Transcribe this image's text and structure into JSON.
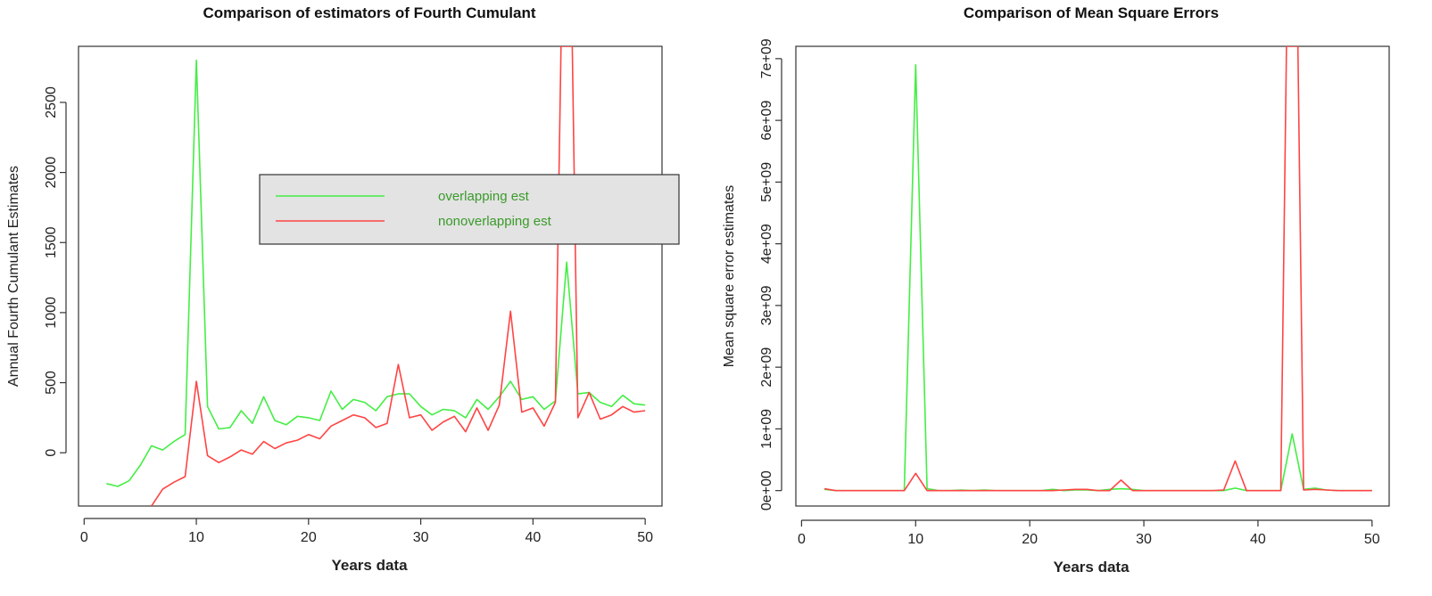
{
  "chart_data": [
    {
      "type": "line",
      "title": "Comparison of estimators of Fourth Cumulant",
      "xlabel": "Years data",
      "ylabel": "Annual Fourth Cumulant Estimates",
      "xlim": [
        -0.5,
        51.5
      ],
      "ylim": [
        -380,
        2900
      ],
      "xticks": [
        0,
        10,
        20,
        30,
        40,
        50
      ],
      "yticks": [
        0,
        500,
        1000,
        1500,
        2000,
        2500
      ],
      "ytick_labels": [
        "0",
        "500",
        "1000",
        "1500",
        "2000",
        "2500"
      ],
      "grid": false,
      "legend": {
        "placement": "center-right",
        "entries": [
          {
            "label": "overlapping est",
            "color": "#44ee44"
          },
          {
            "label": "nonoverlapping est",
            "color": "#ff4444"
          }
        ]
      },
      "series": [
        {
          "name": "overlapping est",
          "color": "#44ee44",
          "x": [
            2,
            3,
            4,
            5,
            6,
            7,
            8,
            9,
            10,
            11,
            12,
            13,
            14,
            15,
            16,
            17,
            18,
            19,
            20,
            21,
            22,
            23,
            24,
            25,
            26,
            27,
            28,
            29,
            30,
            31,
            32,
            33,
            34,
            35,
            36,
            37,
            38,
            39,
            40,
            41,
            42,
            43,
            44,
            45,
            46,
            47,
            48,
            49,
            50
          ],
          "y": [
            -220,
            -240,
            -200,
            -90,
            50,
            20,
            80,
            130,
            2800,
            330,
            170,
            180,
            300,
            210,
            400,
            230,
            200,
            260,
            250,
            230,
            440,
            310,
            380,
            360,
            300,
            400,
            420,
            420,
            330,
            270,
            310,
            300,
            250,
            380,
            310,
            400,
            510,
            380,
            400,
            310,
            370,
            1360,
            420,
            430,
            360,
            330,
            410,
            350,
            340
          ]
        },
        {
          "name": "nonoverlapping est",
          "color": "#ff4444",
          "x": [
            6,
            7,
            8,
            9,
            10,
            11,
            12,
            13,
            14,
            15,
            16,
            17,
            18,
            19,
            20,
            21,
            22,
            23,
            24,
            25,
            26,
            27,
            28,
            29,
            30,
            31,
            32,
            33,
            34,
            35,
            36,
            37,
            38,
            39,
            40,
            41,
            42,
            42.5,
            43.5,
            44,
            45,
            46,
            47,
            48,
            49,
            50
          ],
          "y": [
            -380,
            -260,
            -210,
            -170,
            510,
            -20,
            -70,
            -30,
            20,
            -10,
            80,
            30,
            70,
            90,
            130,
            100,
            190,
            230,
            270,
            250,
            180,
            210,
            630,
            250,
            270,
            160,
            220,
            260,
            150,
            320,
            160,
            340,
            1010,
            290,
            320,
            190,
            360,
            2900,
            2900,
            250,
            430,
            240,
            270,
            330,
            290,
            300
          ]
        }
      ]
    },
    {
      "type": "line",
      "title": "Comparison of Mean Square Errors",
      "xlabel": "Years data",
      "ylabel": "Mean square error estimates",
      "xlim": [
        -0.5,
        51.5
      ],
      "ylim": [
        -0.25,
        7.2
      ],
      "y_unit": "1e+09",
      "xticks": [
        0,
        10,
        20,
        30,
        40,
        50
      ],
      "yticks": [
        0,
        1,
        2,
        3,
        4,
        5,
        6,
        7
      ],
      "ytick_labels": [
        "0e+00",
        "1e+09",
        "2e+09",
        "3e+09",
        "4e+09",
        "5e+09",
        "6e+09",
        "7e+09"
      ],
      "grid": false,
      "series": [
        {
          "name": "",
          "color": "#44ee44",
          "x": [
            2,
            3,
            4,
            5,
            6,
            7,
            8,
            9,
            10,
            11,
            12,
            13,
            14,
            15,
            16,
            17,
            18,
            19,
            20,
            21,
            22,
            23,
            24,
            25,
            26,
            27,
            28,
            29,
            30,
            31,
            32,
            33,
            34,
            35,
            36,
            37,
            38,
            39,
            40,
            41,
            42,
            43,
            44,
            45,
            46,
            47,
            48,
            49,
            50
          ],
          "y": [
            0.02,
            0,
            0,
            0,
            0,
            0,
            0,
            0,
            6.9,
            0.03,
            0,
            0,
            0.01,
            0,
            0.01,
            0,
            0,
            0,
            0,
            0,
            0.02,
            0,
            0.01,
            0.01,
            0,
            0.02,
            0.03,
            0.02,
            0,
            0,
            0,
            0,
            0,
            0,
            0,
            0,
            0.04,
            0,
            0,
            0,
            0,
            0.92,
            0.02,
            0.04,
            0.01,
            0,
            0,
            0,
            0
          ]
        },
        {
          "name": "",
          "color": "#ff4444",
          "x": [
            2,
            3,
            4,
            5,
            6,
            7,
            8,
            9,
            10,
            11,
            12,
            13,
            14,
            15,
            16,
            17,
            18,
            19,
            20,
            21,
            22,
            23,
            24,
            25,
            26,
            27,
            28,
            29,
            30,
            31,
            32,
            33,
            34,
            35,
            36,
            37,
            38,
            39,
            40,
            41,
            42,
            42.5,
            43.5,
            44,
            45,
            46,
            47,
            48,
            49,
            50
          ],
          "y": [
            0.03,
            0,
            0,
            0,
            0,
            0,
            0,
            0,
            0.28,
            0,
            0,
            0,
            0,
            0,
            0,
            0,
            0,
            0,
            0,
            0,
            0,
            0.01,
            0.02,
            0.02,
            0,
            0,
            0.17,
            0,
            0,
            0,
            0,
            0,
            0,
            0,
            0,
            0.01,
            0.48,
            0,
            0,
            0,
            0,
            7.2,
            7.2,
            0.01,
            0.02,
            0.01,
            0,
            0,
            0,
            0
          ]
        }
      ]
    }
  ]
}
